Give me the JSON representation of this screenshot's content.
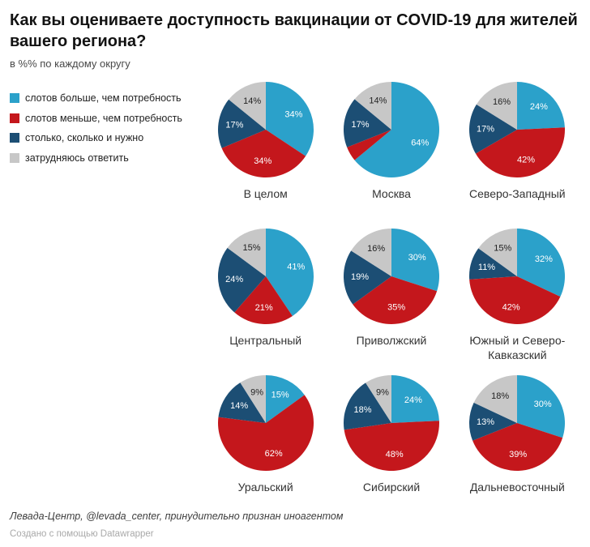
{
  "header": {
    "title": "Как вы оцениваете доступность вакцинации от COVID-19 для жителей вашего региона?",
    "subtitle": "в %% по каждому округу"
  },
  "legend": {
    "items": [
      {
        "label": "слотов больше, чем потребность",
        "color": "#2ba1ca"
      },
      {
        "label": "слотов меньше, чем потребность",
        "color": "#c4171c"
      },
      {
        "label": "столько, сколько и нужно",
        "color": "#1c4e74"
      },
      {
        "label": "затрудняюсь ответить",
        "color": "#c7c7c7"
      }
    ]
  },
  "chart_data": {
    "type": "pie",
    "series_labels": [
      "слотов больше, чем потребность",
      "слотов меньше, чем потребность",
      "столько, сколько и нужно",
      "затрудняюсь ответить"
    ],
    "colors": [
      "#2ba1ca",
      "#c4171c",
      "#1c4e74",
      "#c7c7c7"
    ],
    "label_text_colors": [
      "#ffffff",
      "#ffffff",
      "#ffffff",
      "#222222"
    ],
    "slice_order": "clockwise from 12 o'clock",
    "charts": [
      {
        "title": "В целом",
        "values": [
          34,
          34,
          17,
          14
        ],
        "labels": [
          "34%",
          "34%",
          "17%",
          "14%"
        ]
      },
      {
        "title": "Москва",
        "values": [
          64,
          5,
          17,
          14
        ],
        "labels": [
          "64%",
          "",
          "17%",
          "14%"
        ]
      },
      {
        "title": "Северо-Западный",
        "values": [
          24,
          42,
          17,
          16
        ],
        "labels": [
          "24%",
          "42%",
          "17%",
          "16%"
        ]
      },
      {
        "title": "Центральный",
        "values": [
          41,
          21,
          24,
          15
        ],
        "labels": [
          "41%",
          "21%",
          "24%",
          "15%"
        ]
      },
      {
        "title": "Приволжский",
        "values": [
          30,
          35,
          19,
          16
        ],
        "labels": [
          "30%",
          "35%",
          "19%",
          "16%"
        ]
      },
      {
        "title": "Южный и Северо-Кавказский",
        "values": [
          32,
          42,
          11,
          15
        ],
        "labels": [
          "32%",
          "42%",
          "11%",
          "15%"
        ]
      },
      {
        "title": "Уральский",
        "values": [
          15,
          62,
          14,
          9
        ],
        "labels": [
          "15%",
          "62%",
          "14%",
          "9%"
        ]
      },
      {
        "title": "Сибирский",
        "values": [
          24,
          48,
          18,
          9
        ],
        "labels": [
          "24%",
          "48%",
          "18%",
          "9%"
        ]
      },
      {
        "title": "Дальневосточный",
        "values": [
          30,
          39,
          13,
          18
        ],
        "labels": [
          "30%",
          "39%",
          "13%",
          "18%"
        ]
      }
    ]
  },
  "footer": {
    "source": "Левада-Центр, @levada_center, принудительно признан иноагентом",
    "credit": "Создано с помощью Datawrapper"
  }
}
